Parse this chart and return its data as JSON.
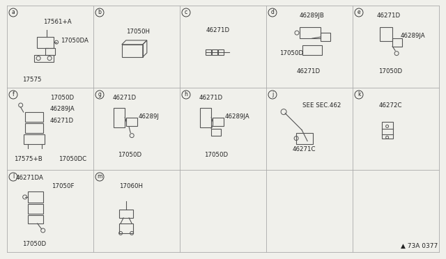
{
  "background_color": "#f0f0eb",
  "grid_color": "#aaaaaa",
  "diagram_color": "#555555",
  "text_color": "#222222",
  "watermark": "▲ 73A 0377",
  "cells": [
    {
      "label": "a",
      "col": 0,
      "row": 0,
      "parts": [
        {
          "text": "17561+A",
          "fx": 0.42,
          "fy": 0.8
        },
        {
          "text": "17050DA",
          "fx": 0.62,
          "fy": 0.57
        },
        {
          "text": "17575",
          "fx": 0.18,
          "fy": 0.1
        }
      ]
    },
    {
      "label": "b",
      "col": 1,
      "row": 0,
      "parts": [
        {
          "text": "17050H",
          "fx": 0.38,
          "fy": 0.68
        }
      ]
    },
    {
      "label": "c",
      "col": 2,
      "row": 0,
      "parts": [
        {
          "text": "46271D",
          "fx": 0.3,
          "fy": 0.7
        }
      ]
    },
    {
      "label": "d",
      "col": 3,
      "row": 0,
      "parts": [
        {
          "text": "46289JB",
          "fx": 0.38,
          "fy": 0.88
        },
        {
          "text": "17050D",
          "fx": 0.15,
          "fy": 0.42
        },
        {
          "text": "46271D",
          "fx": 0.35,
          "fy": 0.2
        }
      ]
    },
    {
      "label": "e",
      "col": 4,
      "row": 0,
      "parts": [
        {
          "text": "46271D",
          "fx": 0.28,
          "fy": 0.88
        },
        {
          "text": "46289JA",
          "fx": 0.55,
          "fy": 0.63
        },
        {
          "text": "17050D",
          "fx": 0.3,
          "fy": 0.2
        }
      ]
    },
    {
      "label": "f",
      "col": 0,
      "row": 1,
      "parts": [
        {
          "text": "17050D",
          "fx": 0.5,
          "fy": 0.88
        },
        {
          "text": "46289JA",
          "fx": 0.5,
          "fy": 0.74
        },
        {
          "text": "46271D",
          "fx": 0.5,
          "fy": 0.6
        },
        {
          "text": "17575+B",
          "fx": 0.08,
          "fy": 0.13
        },
        {
          "text": "17050DC",
          "fx": 0.6,
          "fy": 0.13
        }
      ]
    },
    {
      "label": "g",
      "col": 1,
      "row": 1,
      "parts": [
        {
          "text": "46271D",
          "fx": 0.22,
          "fy": 0.88
        },
        {
          "text": "46289J",
          "fx": 0.52,
          "fy": 0.65
        },
        {
          "text": "17050D",
          "fx": 0.28,
          "fy": 0.18
        }
      ]
    },
    {
      "label": "h",
      "col": 2,
      "row": 1,
      "parts": [
        {
          "text": "46271D",
          "fx": 0.22,
          "fy": 0.88
        },
        {
          "text": "46289JA",
          "fx": 0.52,
          "fy": 0.65
        },
        {
          "text": "17050D",
          "fx": 0.28,
          "fy": 0.18
        }
      ]
    },
    {
      "label": "j",
      "col": 3,
      "row": 1,
      "parts": [
        {
          "text": "SEE SEC.462",
          "fx": 0.42,
          "fy": 0.78
        },
        {
          "text": "46271C",
          "fx": 0.3,
          "fy": 0.25
        }
      ]
    },
    {
      "label": "k",
      "col": 4,
      "row": 1,
      "parts": [
        {
          "text": "46272C",
          "fx": 0.3,
          "fy": 0.78
        }
      ]
    },
    {
      "label": "l",
      "col": 0,
      "row": 2,
      "parts": [
        {
          "text": "46271DA",
          "fx": 0.1,
          "fy": 0.9
        },
        {
          "text": "17050F",
          "fx": 0.52,
          "fy": 0.8
        },
        {
          "text": "17050D",
          "fx": 0.18,
          "fy": 0.1
        }
      ]
    },
    {
      "label": "m",
      "col": 1,
      "row": 2,
      "parts": [
        {
          "text": "17060H",
          "fx": 0.3,
          "fy": 0.8
        }
      ]
    }
  ]
}
